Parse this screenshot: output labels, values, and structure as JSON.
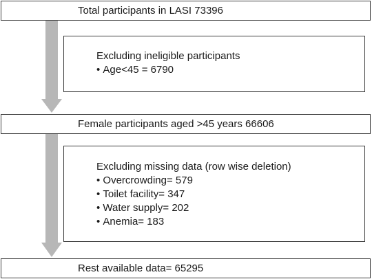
{
  "flow": {
    "total": {
      "text": "Total participants in LASI 73396"
    },
    "exclusion_ineligible": {
      "heading": "Excluding ineligible participants",
      "items": [
        "Age<45 = 6790"
      ]
    },
    "female": {
      "text": "Female participants aged >45 years 66606"
    },
    "exclusion_missing": {
      "heading": "Excluding missing data (row wise deletion)",
      "items": [
        "Overcrowding= 579",
        "Toilet facility= 347",
        "Water supply= 202",
        "Anemia= 183"
      ]
    },
    "rest": {
      "text": "Rest available data= 65295"
    }
  },
  "colors": {
    "arrow": "#b7b7b7",
    "border": "#3a3a3a",
    "text": "#1a1a1a"
  }
}
